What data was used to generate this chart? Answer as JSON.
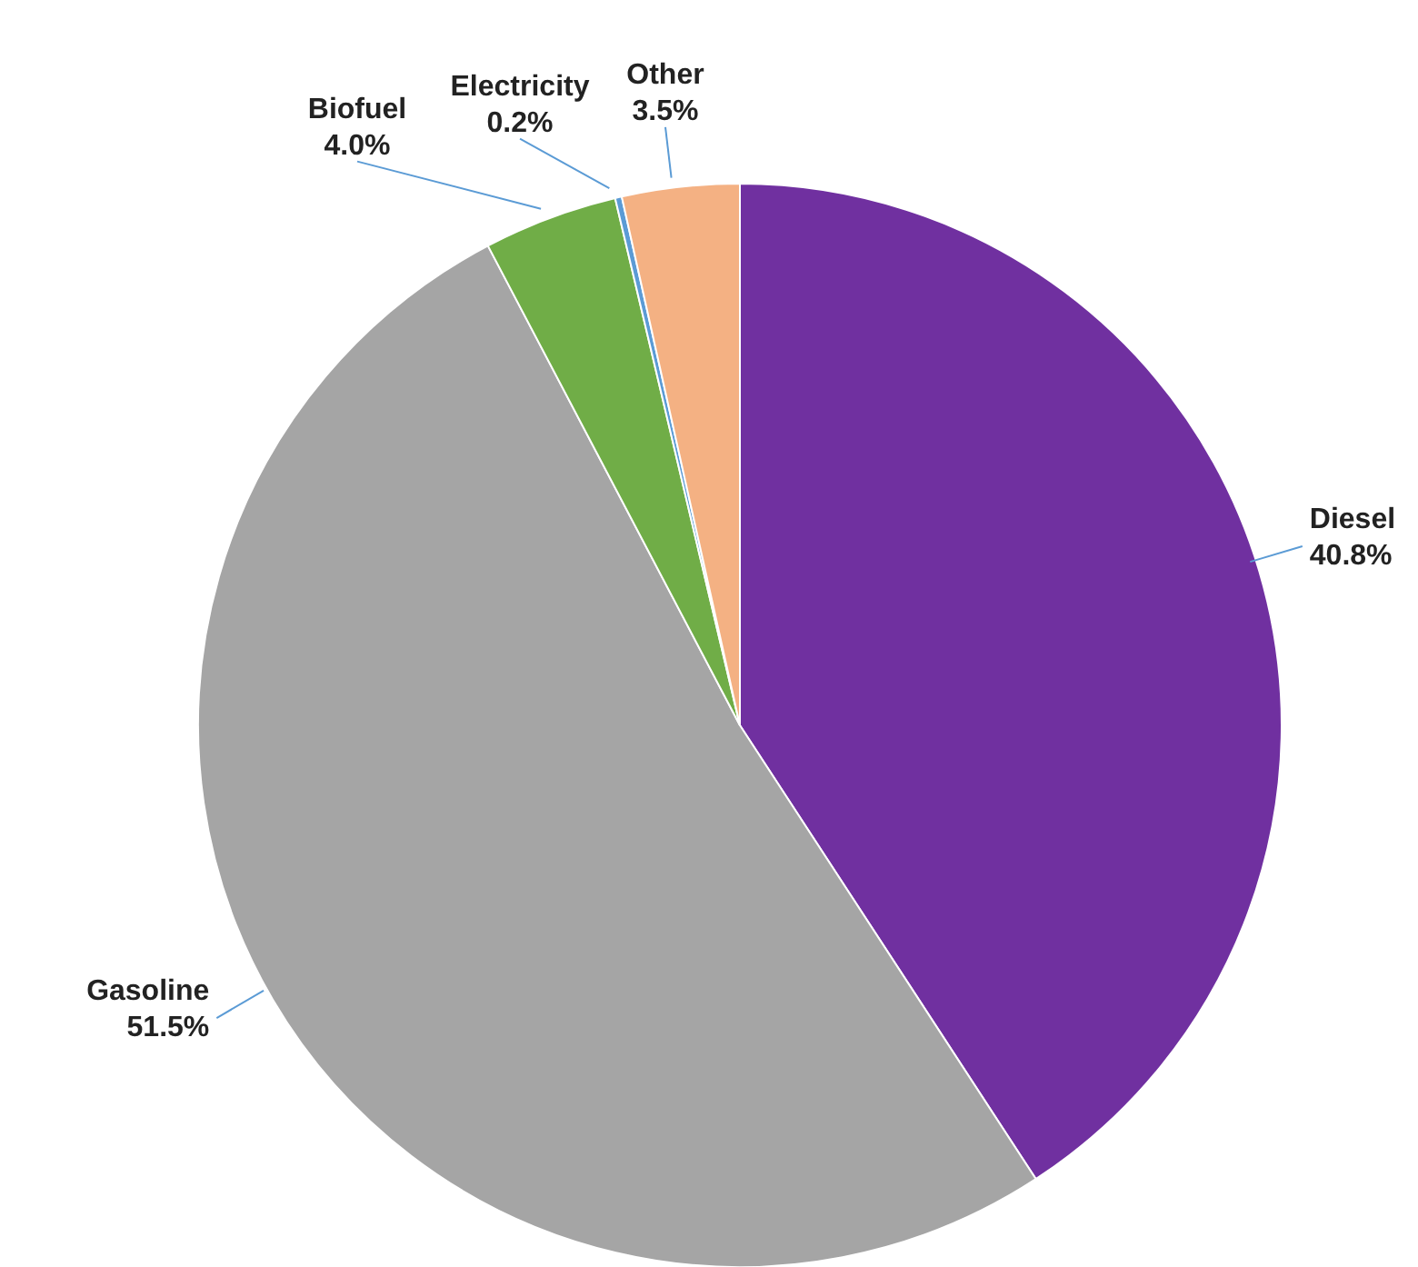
{
  "chart_data": {
    "type": "pie",
    "categories": [
      "Diesel",
      "Gasoline",
      "Biofuel",
      "Electricity",
      "Other"
    ],
    "values": [
      40.8,
      51.5,
      4.0,
      0.2,
      3.5
    ],
    "value_labels": [
      "40.8%",
      "51.5%",
      "4.0%",
      "0.2%",
      "3.5%"
    ],
    "colors": [
      "#7030a0",
      "#a5a5a5",
      "#70ad47",
      "#5b9bd5",
      "#f4b183"
    ]
  }
}
